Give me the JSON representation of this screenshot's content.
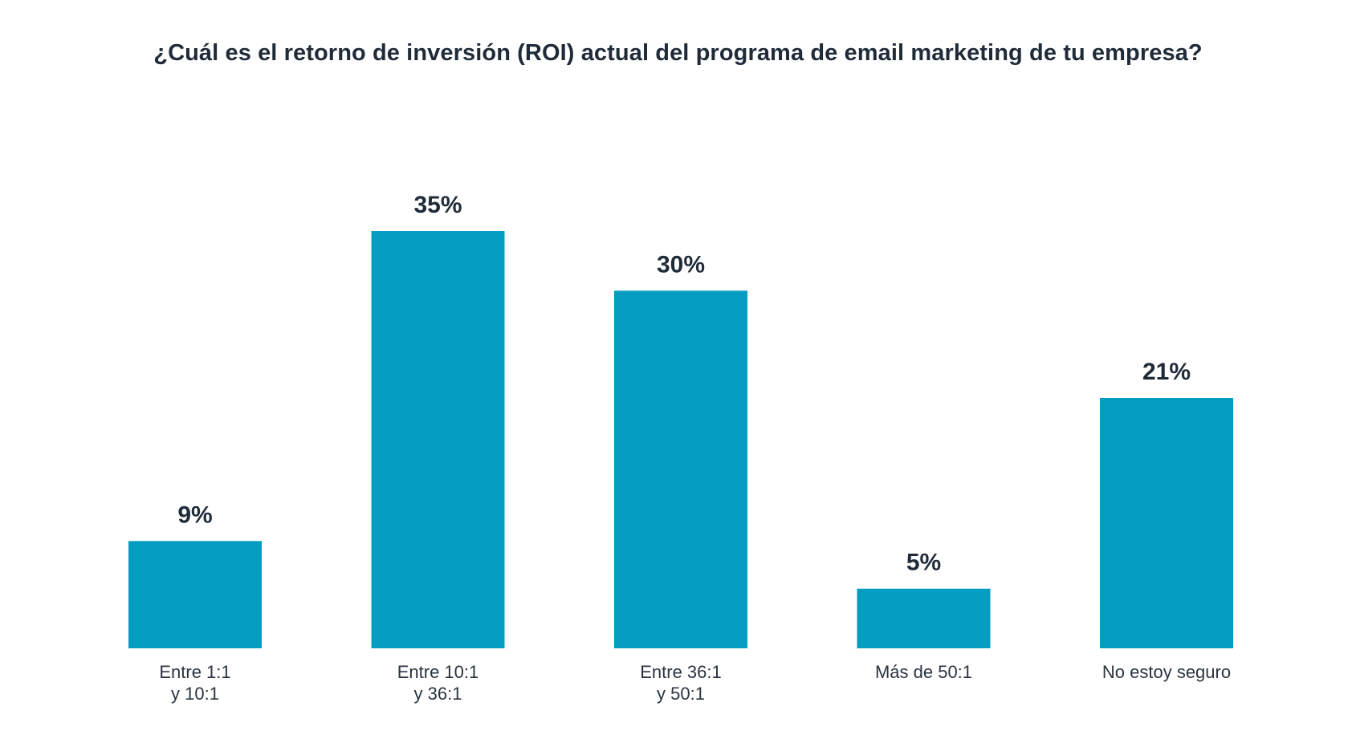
{
  "chart_data": {
    "type": "bar",
    "title": "¿Cuál es el retorno de inversión (ROI) actual del programa de email marketing de tu empresa?",
    "categories": [
      [
        "Entre 1:1",
        "y 10:1"
      ],
      [
        "Entre 10:1",
        "y 36:1"
      ],
      [
        "Entre 36:1",
        "y 50:1"
      ],
      [
        "Más de 50:1"
      ],
      [
        "No estoy seguro"
      ]
    ],
    "values": [
      9,
      35,
      30,
      5,
      21
    ],
    "value_labels": [
      "9%",
      "35%",
      "30%",
      "5%",
      "21%"
    ],
    "ylim": [
      0,
      35
    ],
    "grid": false,
    "bar_color": "#049dc2"
  }
}
